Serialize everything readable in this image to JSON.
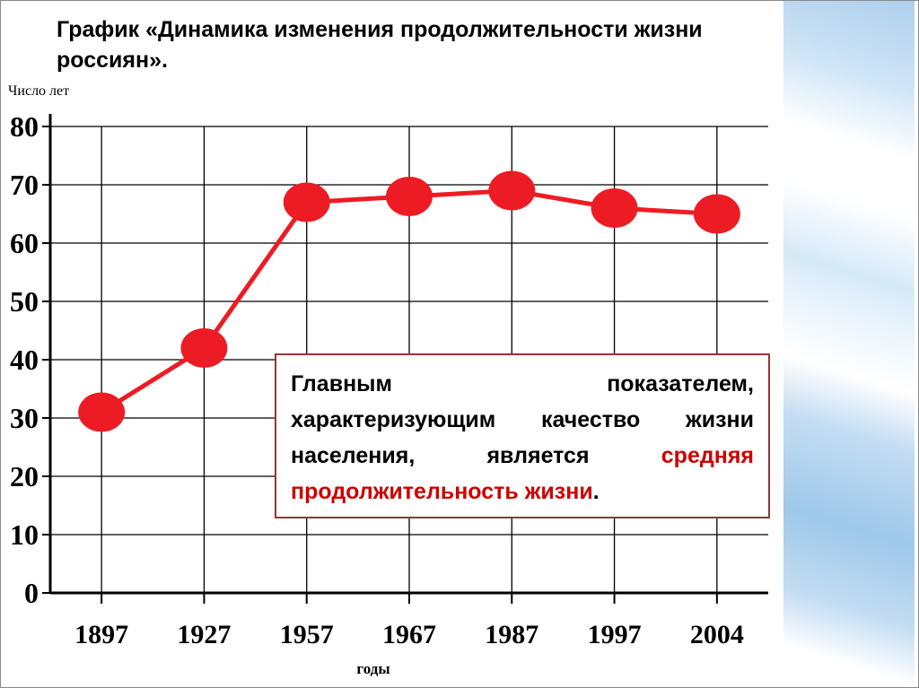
{
  "chart_data": {
    "type": "line",
    "title": "График «Динамика изменения продолжительности жизни россиян».",
    "ylabel": "Число лет",
    "xlabel": "годы",
    "categories": [
      "1897",
      "1927",
      "1957",
      "1967",
      "1987",
      "1997",
      "2004"
    ],
    "values": [
      31,
      42,
      67,
      68,
      69,
      66,
      65
    ],
    "ylim": [
      0,
      80
    ],
    "yticks": [
      0,
      10,
      20,
      30,
      40,
      50,
      60,
      70,
      80
    ],
    "grid": true,
    "legend": false,
    "line_color": "#ed1c24",
    "marker": "ellipse"
  },
  "annotation": {
    "text_black_1": "Главным показателем, характеризующим качество жизни населения, является ",
    "text_red": "средняя продолжительность жизни",
    "text_black_2": ".",
    "red_color": "#cc0000",
    "border_color": "#953734"
  },
  "decoration": {
    "band_colors": [
      "#aecfec",
      "#ffffff",
      "#d6e9f8",
      "#9fc8e9"
    ]
  }
}
